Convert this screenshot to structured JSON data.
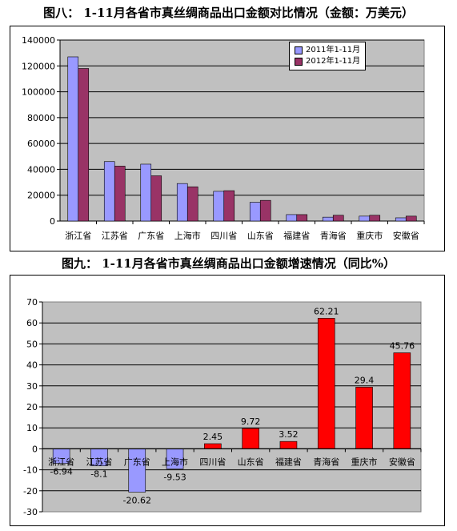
{
  "titles": {
    "chart1": "图八： 1-11月各省市真丝绸商品出口金额对比情况（金额：万美元）",
    "chart2": "图九： 1-11月各省市真丝绸商品出口金额增速情况（同比%）"
  },
  "colors": {
    "series2011": "#9999ff",
    "series2012": "#993366",
    "positive": "#ff0000",
    "negative": "#9999ff",
    "plot_bg": "#c0c0c0"
  },
  "chart_data": [
    {
      "type": "bar",
      "title": "图八： 1-11月各省市真丝绸商品出口金额对比情况（金额：万美元）",
      "categories": [
        "浙江省",
        "江苏省",
        "广东省",
        "上海市",
        "四川省",
        "山东省",
        "福建省",
        "青海省",
        "重庆市",
        "安徽省"
      ],
      "series": [
        {
          "name": "2011年1-11月",
          "values": [
            127000,
            46000,
            44000,
            29000,
            23000,
            14500,
            5000,
            3000,
            3800,
            2500
          ]
        },
        {
          "name": "2012年1-11月",
          "values": [
            118000,
            42500,
            35000,
            26500,
            23500,
            16000,
            5000,
            4500,
            4500,
            3800
          ]
        }
      ],
      "ylim": [
        0,
        140000
      ],
      "yticks": [
        0,
        20000,
        40000,
        60000,
        80000,
        100000,
        120000,
        140000
      ],
      "grid": true,
      "legend": "top-right"
    },
    {
      "type": "bar",
      "title": "图九： 1-11月各省市真丝绸商品出口金额增速情况（同比%）",
      "categories": [
        "浙江省",
        "江苏省",
        "广东省",
        "上海市",
        "四川省",
        "山东省",
        "福建省",
        "青海省",
        "重庆市",
        "安徽省"
      ],
      "values": [
        -6.94,
        -8.1,
        -20.62,
        -9.53,
        2.45,
        9.72,
        3.52,
        62.21,
        29.4,
        45.76
      ],
      "labels": [
        "-6.94",
        "-8.1",
        "-20.62",
        "-9.53",
        "2.45",
        "9.72",
        "3.52",
        "62.21",
        "29.4",
        "45.76"
      ],
      "ylim": [
        -30,
        70
      ],
      "yticks": [
        -30,
        -20,
        -10,
        0,
        10,
        20,
        30,
        40,
        50,
        60,
        70
      ],
      "grid": true
    }
  ]
}
